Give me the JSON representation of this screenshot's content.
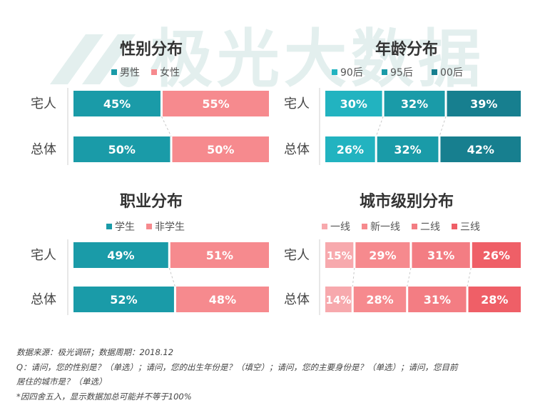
{
  "watermark": "极光大数据",
  "colors": {
    "teal": "#1a9ba8",
    "teal_light": "#22b3c0",
    "teal_dark": "#177f8f",
    "pink": "#f68a8e",
    "pink_light": "#f7a9ad",
    "pink_mid": "#f37d83",
    "pink_dark": "#ef5f67"
  },
  "chart_data": [
    {
      "type": "bar",
      "stacked": true,
      "orientation": "horizontal",
      "title": "性别分布",
      "categories": [
        "宅人",
        "总体"
      ],
      "series": [
        {
          "name": "男性",
          "values": [
            45,
            50
          ],
          "color": "#1a9ba8"
        },
        {
          "name": "女性",
          "values": [
            55,
            50
          ],
          "color": "#f68a8e"
        }
      ],
      "labels": [
        [
          "45%",
          "50%"
        ],
        [
          "55%",
          "50%"
        ]
      ],
      "legend": "top"
    },
    {
      "type": "bar",
      "stacked": true,
      "orientation": "horizontal",
      "title": "年龄分布",
      "categories": [
        "宅人",
        "总体"
      ],
      "series": [
        {
          "name": "90后",
          "values": [
            30,
            26
          ],
          "color": "#22b3c0"
        },
        {
          "name": "95后",
          "values": [
            32,
            32
          ],
          "color": "#1a9ba8"
        },
        {
          "name": "00后",
          "values": [
            39,
            42
          ],
          "color": "#177f8f"
        }
      ],
      "labels": [
        [
          "30%",
          "26%"
        ],
        [
          "32%",
          "32%"
        ],
        [
          "39%",
          "42%"
        ]
      ],
      "legend": "top"
    },
    {
      "type": "bar",
      "stacked": true,
      "orientation": "horizontal",
      "title": "职业分布",
      "categories": [
        "宅人",
        "总体"
      ],
      "series": [
        {
          "name": "学生",
          "values": [
            49,
            52
          ],
          "color": "#1a9ba8"
        },
        {
          "name": "非学生",
          "values": [
            51,
            48
          ],
          "color": "#f68a8e"
        }
      ],
      "labels": [
        [
          "49%",
          "52%"
        ],
        [
          "51%",
          "48%"
        ]
      ],
      "legend": "top"
    },
    {
      "type": "bar",
      "stacked": true,
      "orientation": "horizontal",
      "title": "城市级别分布",
      "categories": [
        "宅人",
        "总体"
      ],
      "series": [
        {
          "name": "一线",
          "values": [
            15,
            14
          ],
          "color": "#f7a9ad"
        },
        {
          "name": "新一线",
          "values": [
            29,
            28
          ],
          "color": "#f68a8e"
        },
        {
          "name": "二线",
          "values": [
            31,
            31
          ],
          "color": "#f37d83"
        },
        {
          "name": "三线",
          "values": [
            26,
            28
          ],
          "color": "#ef5f67"
        }
      ],
      "labels": [
        [
          "15%",
          "14%"
        ],
        [
          "29%",
          "28%"
        ],
        [
          "31%",
          "31%"
        ],
        [
          "26%",
          "28%"
        ]
      ],
      "legend": "top"
    }
  ],
  "footer": {
    "source": "数据来源：极光调研；数据周期：2018.12",
    "question_line1": "Q：请问，您的性别是？（单选）；请问，您的出生年份是？（填空）；请问，您的主要身份是？（单选）；请问，您目前",
    "question_line2": "居住的城市是？（单选）",
    "note": "*因四舍五入，显示数据加总可能并不等于100%"
  }
}
